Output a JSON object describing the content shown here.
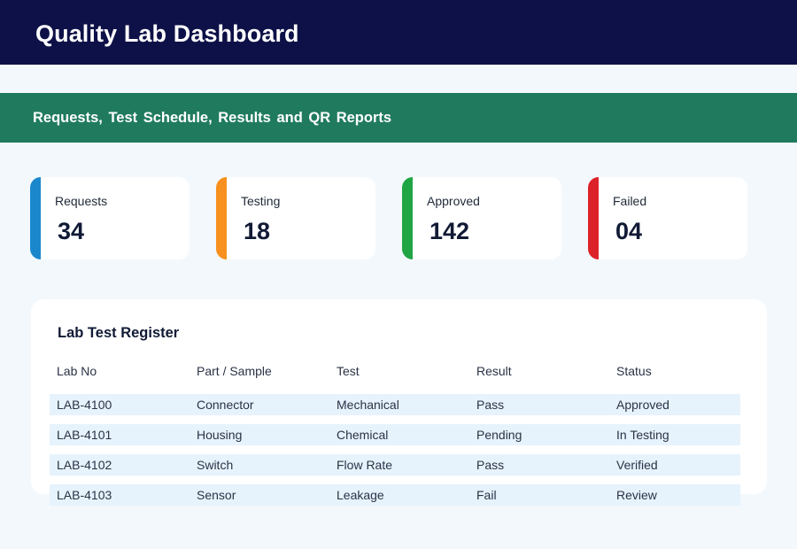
{
  "header": {
    "title": "Quality Lab Dashboard"
  },
  "banner": {
    "text": "Requests, Test Schedule, Results and QR Reports"
  },
  "stats": [
    {
      "label": "Requests",
      "value": "34",
      "color": "#1a87cd"
    },
    {
      "label": "Testing",
      "value": "18",
      "color": "#f7901e"
    },
    {
      "label": "Approved",
      "value": "142",
      "color": "#20a545"
    },
    {
      "label": "Failed",
      "value": "04",
      "color": "#dd2129"
    }
  ],
  "register": {
    "title": "Lab Test Register",
    "columns": [
      "Lab No",
      "Part / Sample",
      "Test",
      "Result",
      "Status"
    ],
    "rows": [
      [
        "LAB-4100",
        "Connector",
        "Mechanical",
        "Pass",
        "Approved"
      ],
      [
        "LAB-4101",
        "Housing",
        "Chemical",
        "Pending",
        "In Testing"
      ],
      [
        "LAB-4102",
        "Switch",
        "Flow Rate",
        "Pass",
        "Verified"
      ],
      [
        "LAB-4103",
        "Sensor",
        "Leakage",
        "Fail",
        "Review"
      ]
    ]
  },
  "colors": {
    "header_bg": "#0d1147",
    "banner_bg": "#207b5e",
    "page_bg": "#f3f8fc",
    "row_bg": "#e6f3fd"
  }
}
